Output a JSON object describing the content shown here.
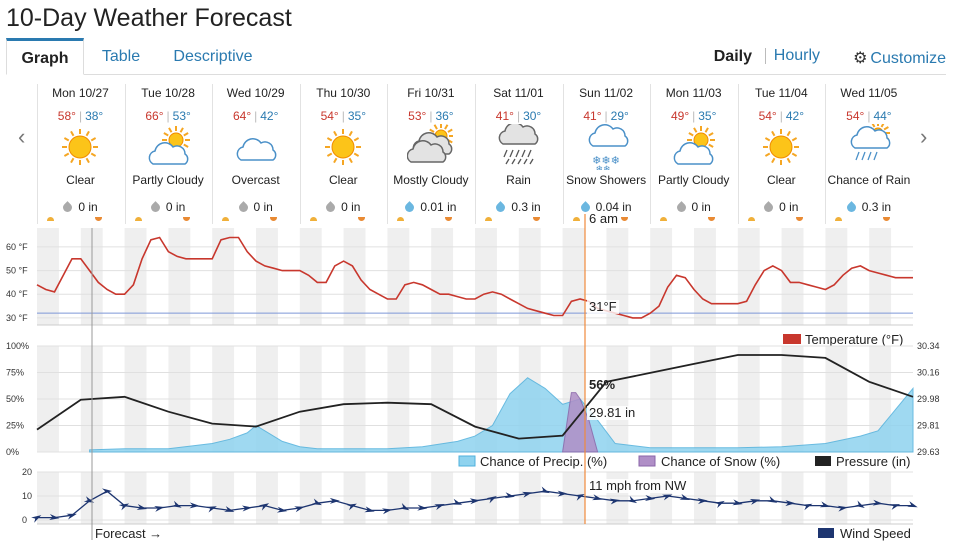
{
  "title": "10-Day Weather Forecast",
  "tabs": [
    {
      "label": "Graph",
      "active": true
    },
    {
      "label": "Table",
      "active": false
    },
    {
      "label": "Descriptive",
      "active": false
    }
  ],
  "view_options": {
    "daily": "Daily",
    "hourly": "Hourly",
    "customize": "Customize",
    "customize_icon": "gear-icon"
  },
  "days": [
    {
      "date": "Mon 10/27",
      "hi": "58°",
      "lo": "38°",
      "icon": "sun",
      "condition": "Clear",
      "precip": "0 in",
      "drop": "gray"
    },
    {
      "date": "Tue 10/28",
      "hi": "66°",
      "lo": "53°",
      "icon": "partly-cloudy",
      "condition": "Partly Cloudy",
      "precip": "0 in",
      "drop": "gray"
    },
    {
      "date": "Wed 10/29",
      "hi": "64°",
      "lo": "42°",
      "icon": "cloud",
      "condition": "Overcast",
      "precip": "0 in",
      "drop": "gray"
    },
    {
      "date": "Thu 10/30",
      "hi": "54°",
      "lo": "35°",
      "icon": "sun",
      "condition": "Clear",
      "precip": "0 in",
      "drop": "gray"
    },
    {
      "date": "Fri 10/31",
      "hi": "53°",
      "lo": "36°",
      "icon": "mostly-cloudy",
      "condition": "Mostly Cloudy",
      "precip": "0.01 in",
      "drop": "blue"
    },
    {
      "date": "Sat 11/01",
      "hi": "41°",
      "lo": "30°",
      "icon": "rain",
      "condition": "Rain",
      "precip": "0.3 in",
      "drop": "blue"
    },
    {
      "date": "Sun 11/02",
      "hi": "41°",
      "lo": "29°",
      "icon": "snow",
      "condition": "Snow Showers",
      "precip": "0.04 in",
      "drop": "blue"
    },
    {
      "date": "Mon 11/03",
      "hi": "49°",
      "lo": "35°",
      "icon": "partly-cloudy",
      "condition": "Partly Cloudy",
      "precip": "0 in",
      "drop": "gray"
    },
    {
      "date": "Tue 11/04",
      "hi": "54°",
      "lo": "42°",
      "icon": "sun",
      "condition": "Clear",
      "precip": "0 in",
      "drop": "gray"
    },
    {
      "date": "Wed 11/05",
      "hi": "54°",
      "lo": "44°",
      "icon": "chance-rain",
      "condition": "Chance of Rain",
      "precip": "0.3 in",
      "drop": "blue"
    }
  ],
  "cursor": {
    "time_label": "6 am",
    "temp_label": "31°F",
    "precip_label": "56%",
    "pressure_label": "29.81 in",
    "wind_label": "11 mph from NW"
  },
  "forecast_label": "Forecast →",
  "colors": {
    "temperature": "#c8372d",
    "precip": "#8fd3ef",
    "snow": "#b08fc7",
    "pressure": "#222222",
    "wind": "#1d3570",
    "cursor": "#f08a3c",
    "freeze_line": "#7e97d8"
  },
  "chart_data": [
    {
      "type": "line",
      "legend": [
        "Temperature (°F)"
      ],
      "y_ticks": [
        "60 °F",
        "50 °F",
        "40 °F",
        "30 °F"
      ],
      "ylim": [
        27,
        68
      ],
      "freeze_line": 32,
      "x_days": [
        "Mon 10/27",
        "Tue 10/28",
        "Wed 10/29",
        "Thu 10/30",
        "Fri 10/31",
        "Sat 11/01",
        "Sun 11/02",
        "Mon 11/03",
        "Tue 11/04",
        "Wed 11/05"
      ],
      "series": [
        {
          "name": "Temperature (°F)",
          "x": [
            0,
            0.1,
            0.2,
            0.3,
            0.4,
            0.5,
            0.6,
            0.7,
            0.8,
            0.9,
            1,
            1.1,
            1.2,
            1.3,
            1.4,
            1.5,
            1.6,
            1.7,
            1.8,
            1.9,
            2,
            2.1,
            2.2,
            2.3,
            2.4,
            2.5,
            2.6,
            2.7,
            2.8,
            2.9,
            3,
            3.1,
            3.2,
            3.3,
            3.4,
            3.5,
            3.6,
            3.7,
            3.8,
            3.9,
            4,
            4.1,
            4.2,
            4.3,
            4.4,
            4.5,
            4.6,
            4.7,
            4.8,
            4.9,
            5,
            5.1,
            5.2,
            5.3,
            5.4,
            5.5,
            5.6,
            5.7,
            5.8,
            5.9,
            6,
            6.1,
            6.2,
            6.3,
            6.4,
            6.5,
            6.6,
            6.7,
            6.8,
            6.9,
            7,
            7.1,
            7.2,
            7.3,
            7.4,
            7.5,
            7.6,
            7.7,
            7.8,
            7.9,
            8,
            8.1,
            8.2,
            8.3,
            8.4,
            8.5,
            8.6,
            8.7,
            8.8,
            8.9,
            9,
            9.1,
            9.2,
            9.3,
            9.4,
            9.5,
            9.6,
            9.7,
            9.8,
            9.9,
            10
          ],
          "values": [
            44,
            42,
            41,
            48,
            55,
            55,
            50,
            45,
            42,
            40,
            40,
            44,
            55,
            63,
            64,
            58,
            56,
            55,
            55,
            55,
            55,
            63,
            64,
            64,
            58,
            54,
            52,
            51,
            50,
            50,
            50,
            48,
            45,
            45,
            52,
            54,
            52,
            46,
            42,
            40,
            38,
            38,
            44,
            45,
            44,
            42,
            40,
            40,
            39,
            38,
            38,
            40,
            41,
            40,
            38,
            36,
            34,
            33,
            32,
            31,
            31,
            37,
            38,
            37,
            34,
            33,
            32,
            31,
            30,
            30,
            32,
            35,
            43,
            48,
            47,
            42,
            38,
            36,
            36,
            36,
            36,
            37,
            44,
            50,
            52,
            50,
            45,
            45,
            44,
            43,
            42,
            44,
            48,
            51,
            52,
            50,
            49,
            48,
            47,
            47,
            47
          ]
        }
      ]
    },
    {
      "type": "area",
      "legend": [
        "Chance of Precip. (%)",
        "Chance of Snow (%)",
        "Pressure (in)"
      ],
      "y_ticks_left": [
        "100%",
        "75%",
        "50%",
        "25%",
        "0%"
      ],
      "y_ticks_right": [
        "30.34",
        "30.16",
        "29.98",
        "29.81",
        "29.63"
      ],
      "ylim": [
        0,
        100
      ],
      "y2lim": [
        29.63,
        30.34
      ],
      "series": [
        {
          "name": "Chance of Precip. (%)",
          "x": [
            0.6,
            1,
            1.5,
            2,
            2.2,
            2.4,
            2.5,
            2.6,
            2.8,
            3,
            3.2,
            3.6,
            4,
            4.4,
            4.8,
            5,
            5.2,
            5.4,
            5.6,
            5.8,
            6,
            6.2,
            6.4,
            6.6,
            7,
            7.5,
            8,
            8.5,
            9,
            9.4,
            9.6,
            9.8,
            10
          ],
          "values": [
            2,
            3,
            3,
            8,
            12,
            18,
            25,
            20,
            10,
            5,
            3,
            3,
            3,
            5,
            10,
            15,
            25,
            55,
            70,
            60,
            45,
            50,
            30,
            8,
            4,
            4,
            4,
            5,
            8,
            15,
            20,
            40,
            60
          ]
        },
        {
          "name": "Chance of Snow (%)",
          "x": [
            6.0,
            6.1,
            6.15,
            6.2,
            6.3,
            6.4
          ],
          "values": [
            0,
            56,
            56,
            50,
            30,
            0
          ]
        },
        {
          "name": "Pressure (in)",
          "x": [
            0,
            0.5,
            1,
            1.5,
            2,
            2.5,
            3,
            3.5,
            4,
            4.5,
            5,
            5.5,
            6,
            6.5,
            7,
            7.5,
            8,
            8.5,
            9,
            9.5,
            10
          ],
          "values": [
            29.78,
            29.98,
            30.0,
            29.9,
            29.82,
            29.8,
            29.9,
            29.95,
            29.96,
            29.95,
            29.8,
            29.72,
            29.74,
            30.1,
            30.16,
            30.22,
            30.28,
            30.28,
            30.26,
            30.1,
            30.0
          ]
        }
      ]
    },
    {
      "type": "line",
      "legend": [
        "Wind Speed"
      ],
      "y_ticks": [
        "20",
        "10",
        "0"
      ],
      "ylim": [
        0,
        20
      ],
      "series": [
        {
          "name": "Wind Speed",
          "x": [
            0,
            0.2,
            0.4,
            0.6,
            0.8,
            1,
            1.2,
            1.4,
            1.6,
            1.8,
            2,
            2.2,
            2.4,
            2.6,
            2.8,
            3,
            3.2,
            3.4,
            3.6,
            3.8,
            4,
            4.2,
            4.4,
            4.6,
            4.8,
            5,
            5.2,
            5.4,
            5.6,
            5.8,
            6,
            6.2,
            6.4,
            6.6,
            6.8,
            7,
            7.2,
            7.4,
            7.6,
            7.8,
            8,
            8.2,
            8.4,
            8.6,
            8.8,
            9,
            9.2,
            9.4,
            9.6,
            9.8,
            10
          ],
          "values": [
            1,
            1,
            2,
            8,
            12,
            6,
            5,
            5,
            6,
            6,
            5,
            4,
            5,
            6,
            4,
            5,
            7,
            8,
            6,
            4,
            4,
            5,
            5,
            6,
            7,
            8,
            9,
            10,
            11,
            12,
            11,
            10,
            9,
            8,
            8,
            9,
            10,
            9,
            8,
            7,
            7,
            8,
            8,
            7,
            6,
            6,
            5,
            6,
            7,
            6,
            6
          ]
        }
      ]
    }
  ]
}
